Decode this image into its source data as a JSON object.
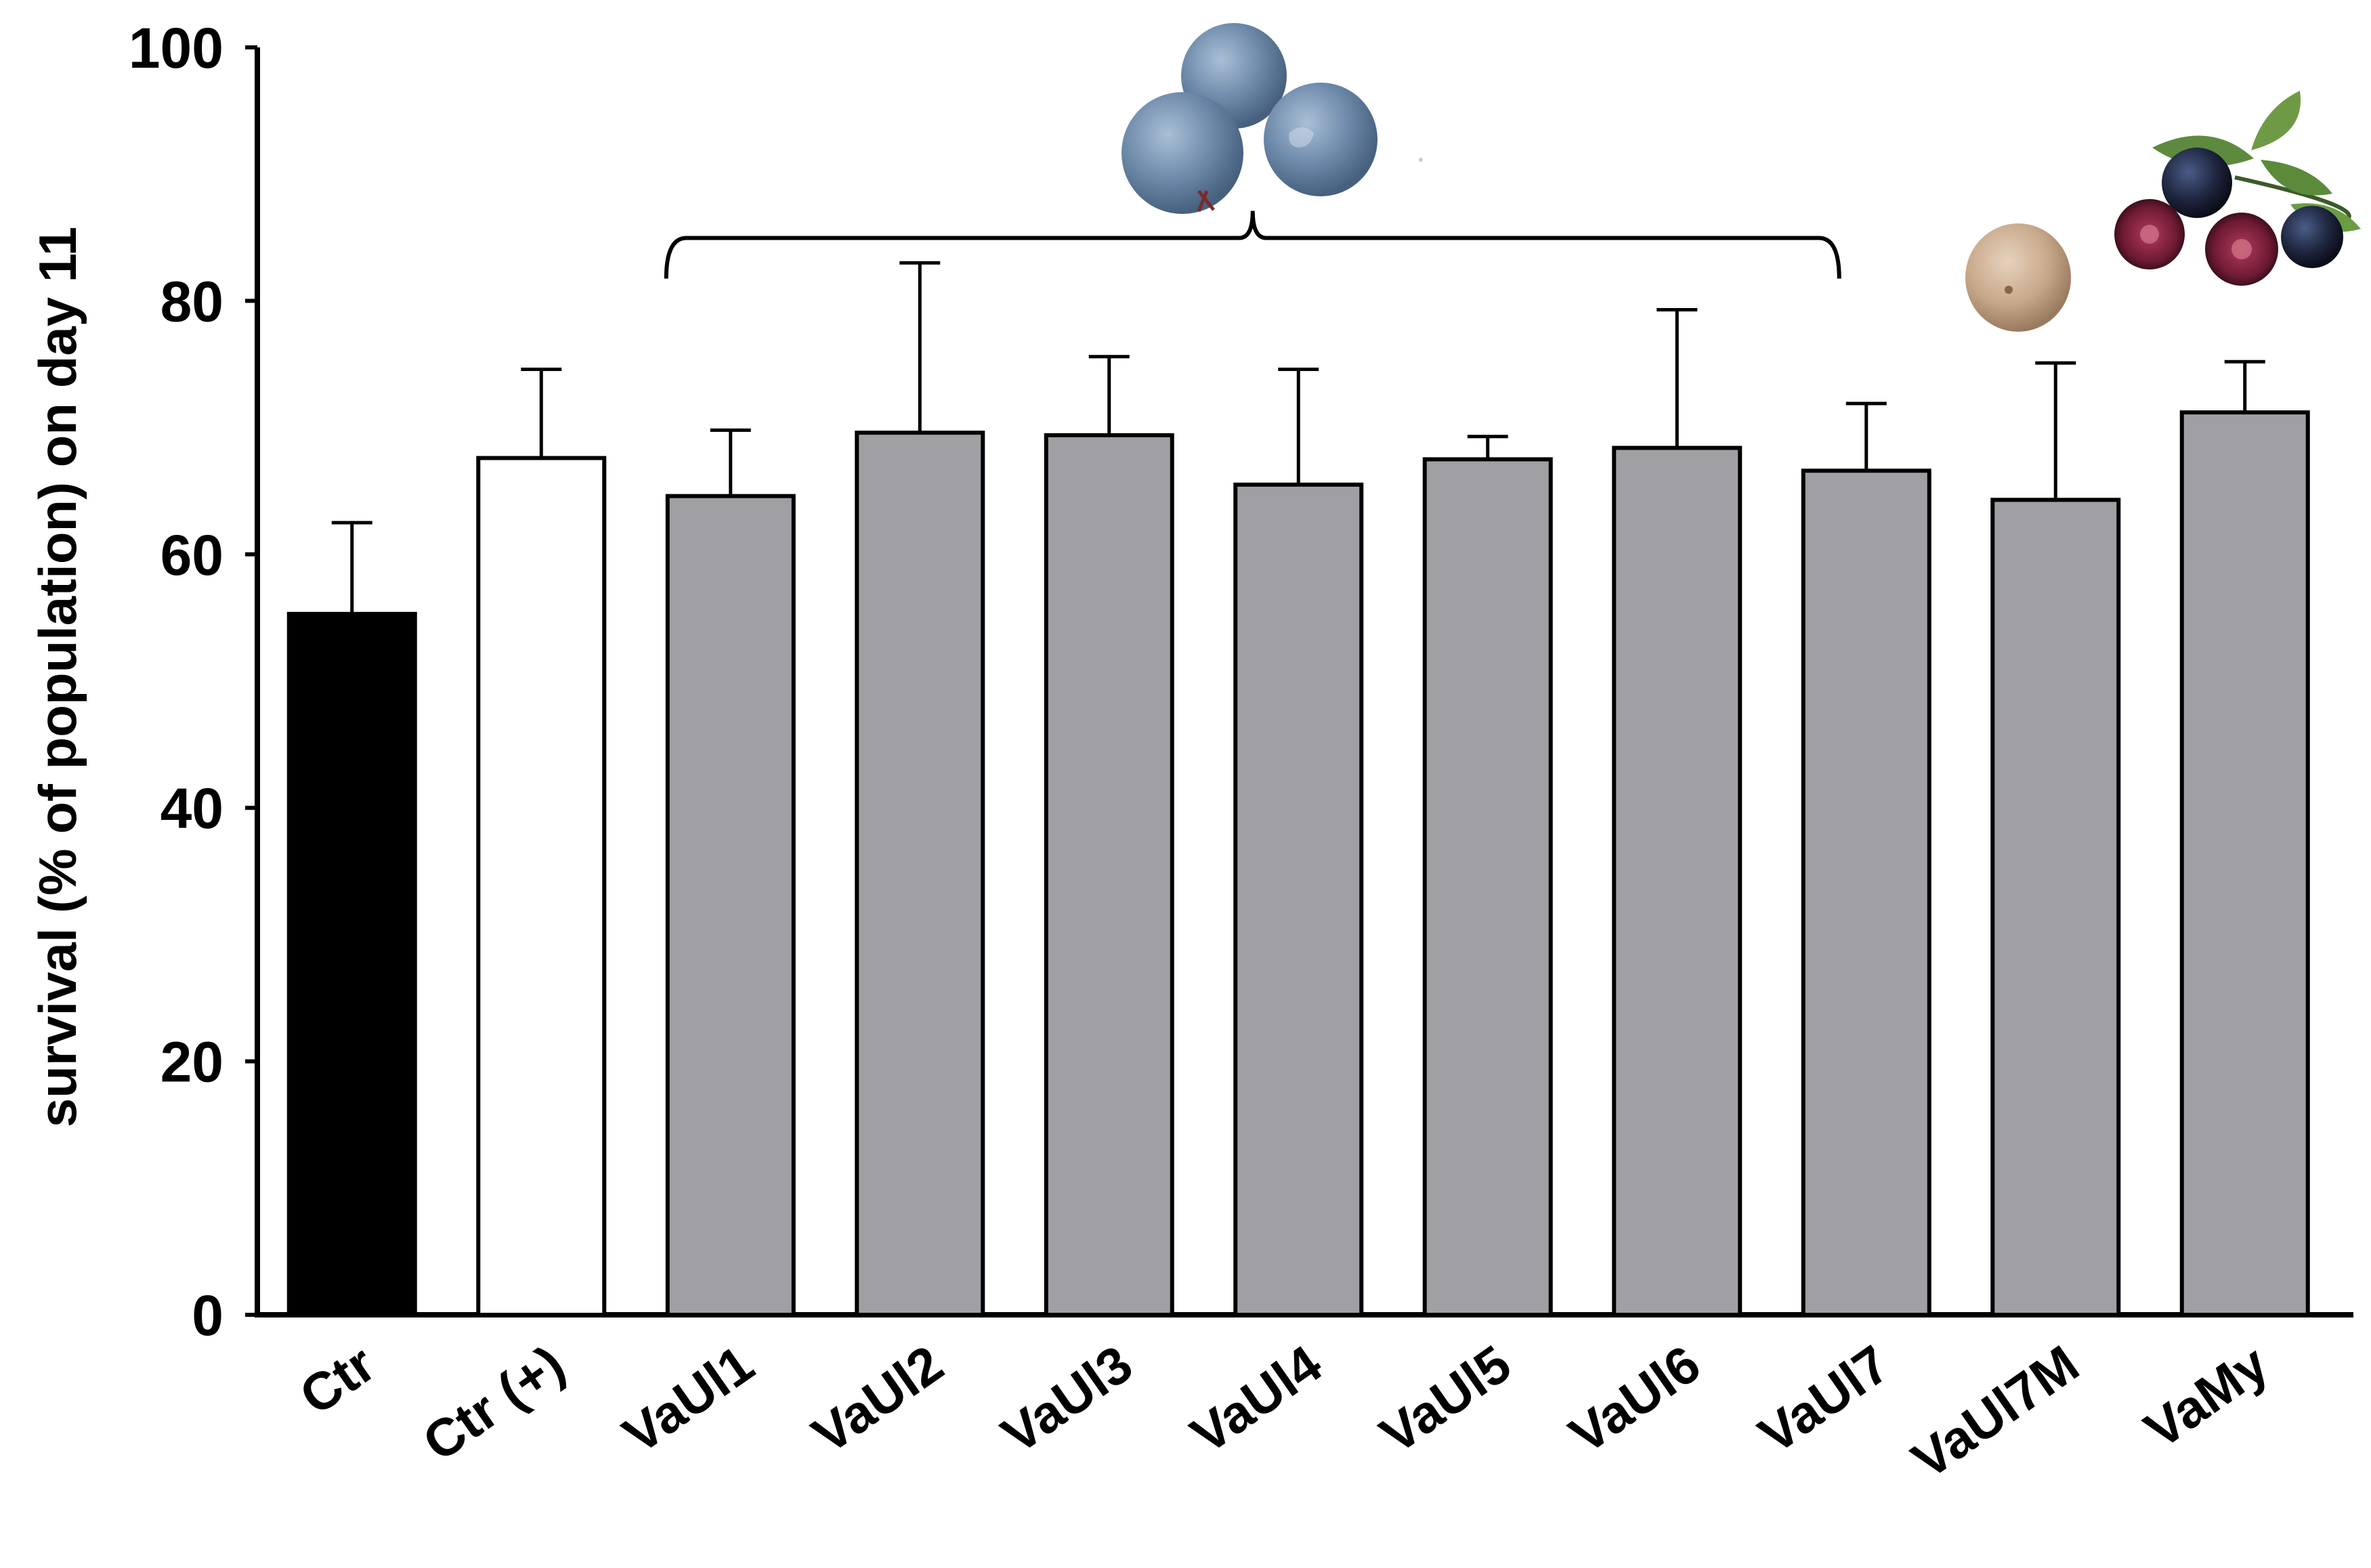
{
  "chart_data": {
    "type": "bar",
    "ylabel": "survival (% of population) on day 11",
    "xlabel": "",
    "ylim": [
      0,
      100
    ],
    "yticks": [
      0,
      20,
      40,
      60,
      80,
      100
    ],
    "grid": false,
    "categories": [
      "Ctr",
      "Ctr (+)",
      "VaUl1",
      "VaUl2",
      "VaUl3",
      "VaUl4",
      "VaUl5",
      "VaUl6",
      "VaUl7",
      "VaUl7M",
      "VaMy"
    ],
    "values": [
      55.3,
      67.6,
      64.6,
      69.6,
      69.4,
      65.5,
      67.5,
      68.4,
      66.6,
      64.3,
      71.2
    ],
    "error_upper": [
      62.5,
      74.6,
      69.8,
      83.0,
      75.6,
      74.6,
      69.3,
      79.3,
      71.9,
      75.1,
      75.2
    ],
    "bar_colors": [
      "#000000",
      "#ffffff",
      "#a09fa4",
      "#a09fa4",
      "#a09fa4",
      "#a09fa4",
      "#a09fa4",
      "#a09fa4",
      "#a09fa4",
      "#a09fa4",
      "#a09fa4"
    ],
    "annotations": [
      {
        "type": "bracket",
        "from_category": "VaUl1",
        "to_category": "VaUl7",
        "y": 85.5
      },
      {
        "type": "picture",
        "depicts": "blueberries",
        "above": "bracket"
      },
      {
        "type": "picture",
        "depicts": "pale berry",
        "near_category": "VaUl7M"
      },
      {
        "type": "picture",
        "depicts": "bilberries with leaves",
        "near_category": "VaMy"
      }
    ]
  }
}
